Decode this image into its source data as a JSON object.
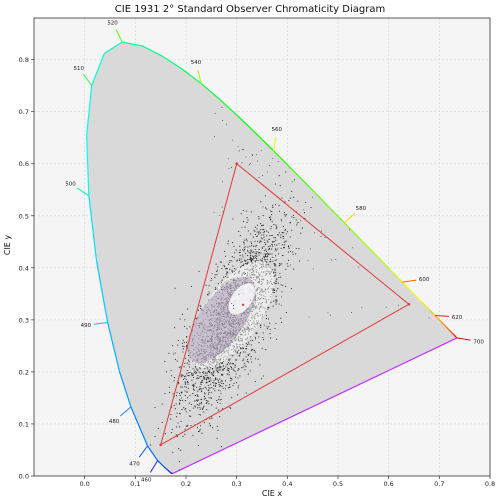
{
  "chart_data": {
    "type": "scatter",
    "title": "CIE 1931 2° Standard Observer Chromaticity Diagram",
    "xlabel": "CIE x",
    "ylabel": "CIE y",
    "xlim": [
      -0.1,
      0.8
    ],
    "ylim": [
      0.0,
      0.88
    ],
    "x_ticks": [
      "0.0",
      "0.1",
      "0.2",
      "0.3",
      "0.4",
      "0.5",
      "0.6",
      "0.7",
      "0.8"
    ],
    "x_tick_values": [
      0.0,
      0.1,
      0.2,
      0.3,
      0.4,
      0.5,
      0.6,
      0.7,
      0.8
    ],
    "y_ticks": [
      "0.0",
      "0.1",
      "0.2",
      "0.3",
      "0.4",
      "0.5",
      "0.6",
      "0.7",
      "0.8"
    ],
    "y_tick_values": [
      0.0,
      0.1,
      0.2,
      0.3,
      0.4,
      0.5,
      0.6,
      0.7,
      0.8
    ],
    "grid": true,
    "spectral_locus": [
      [
        0.1741,
        0.005
      ],
      [
        0.1738,
        0.0049
      ],
      [
        0.1714,
        0.0051
      ],
      [
        0.1689,
        0.0069
      ],
      [
        0.1644,
        0.0109
      ],
      [
        0.1566,
        0.0177
      ],
      [
        0.144,
        0.0297
      ],
      [
        0.1241,
        0.0578
      ],
      [
        0.0913,
        0.1327
      ],
      [
        0.0687,
        0.2007
      ],
      [
        0.0454,
        0.295
      ],
      [
        0.0235,
        0.4127
      ],
      [
        0.0082,
        0.5384
      ],
      [
        0.0039,
        0.6548
      ],
      [
        0.0139,
        0.7502
      ],
      [
        0.0389,
        0.812
      ],
      [
        0.0743,
        0.8338
      ],
      [
        0.1142,
        0.8262
      ],
      [
        0.1547,
        0.8059
      ],
      [
        0.1929,
        0.7816
      ],
      [
        0.2296,
        0.7543
      ],
      [
        0.2658,
        0.7243
      ],
      [
        0.3016,
        0.6923
      ],
      [
        0.3373,
        0.6589
      ],
      [
        0.3731,
        0.6245
      ],
      [
        0.4087,
        0.5896
      ],
      [
        0.4441,
        0.5547
      ],
      [
        0.4788,
        0.5202
      ],
      [
        0.5125,
        0.4866
      ],
      [
        0.5448,
        0.4544
      ],
      [
        0.5752,
        0.4242
      ],
      [
        0.6029,
        0.3965
      ],
      [
        0.627,
        0.3725
      ],
      [
        0.6482,
        0.3514
      ],
      [
        0.6658,
        0.334
      ],
      [
        0.6801,
        0.3197
      ],
      [
        0.6915,
        0.3083
      ],
      [
        0.7006,
        0.2993
      ],
      [
        0.7079,
        0.292
      ],
      [
        0.714,
        0.2859
      ],
      [
        0.719,
        0.2809
      ],
      [
        0.723,
        0.277
      ],
      [
        0.726,
        0.274
      ],
      [
        0.7283,
        0.2717
      ],
      [
        0.73,
        0.27
      ],
      [
        0.7347,
        0.2653
      ]
    ],
    "wavelength_labels": [
      {
        "nm": "460",
        "x": 0.144,
        "y": 0.0297,
        "color": "#2a20ff"
      },
      {
        "nm": "470",
        "x": 0.1241,
        "y": 0.0578,
        "color": "#1458ff"
      },
      {
        "nm": "480",
        "x": 0.0913,
        "y": 0.1327,
        "color": "#1e8cff"
      },
      {
        "nm": "490",
        "x": 0.0454,
        "y": 0.295,
        "color": "#00c8e6"
      },
      {
        "nm": "500",
        "x": 0.0082,
        "y": 0.5384,
        "color": "#00ffb4"
      },
      {
        "nm": "510",
        "x": 0.0139,
        "y": 0.7502,
        "color": "#28ff46"
      },
      {
        "nm": "520",
        "x": 0.0743,
        "y": 0.8338,
        "color": "#5aff00"
      },
      {
        "nm": "540",
        "x": 0.2296,
        "y": 0.7543,
        "color": "#a0ff00"
      },
      {
        "nm": "560",
        "x": 0.3731,
        "y": 0.6245,
        "color": "#e0ff00"
      },
      {
        "nm": "580",
        "x": 0.5125,
        "y": 0.4866,
        "color": "#ffd200"
      },
      {
        "nm": "600",
        "x": 0.627,
        "y": 0.3725,
        "color": "#ff6400"
      },
      {
        "nm": "620",
        "x": 0.6915,
        "y": 0.3083,
        "color": "#ff2000"
      },
      {
        "nm": "700",
        "x": 0.7347,
        "y": 0.2653,
        "color": "#e00000"
      }
    ],
    "gamut_triangle": [
      [
        0.64,
        0.33
      ],
      [
        0.3,
        0.6
      ],
      [
        0.15,
        0.06
      ]
    ],
    "white_point": [
      0.3127,
      0.329
    ],
    "colors": {
      "background": "#f5f5f5",
      "locus_fill": "#d9d9d9",
      "gamut": "#e03a3a",
      "points": "#111111",
      "grid": "#d4d4d4"
    }
  }
}
